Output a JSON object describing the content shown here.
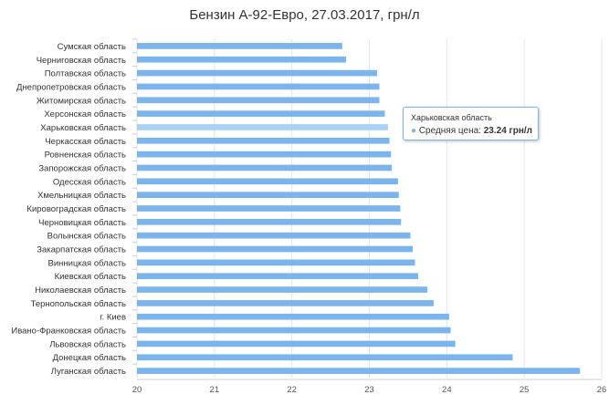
{
  "chart_data": {
    "type": "bar",
    "orientation": "horizontal",
    "title": "Бензин А-92-Евро, 27.03.2017, грн/л",
    "xlabel": "",
    "ylabel": "",
    "xlim": [
      20,
      26
    ],
    "x_ticks": [
      "20",
      "21",
      "22",
      "23",
      "24",
      "25",
      "26"
    ],
    "grid": "vertical",
    "color": "#7cb5ec",
    "highlight_color": "#a9d0f5",
    "categories": [
      "Сумская область",
      "Черниговская область",
      "Полтавская область",
      "Днепропетровская область",
      "Житомирская область",
      "Херсонская область",
      "Харьковская область",
      "Черкасская область",
      "Ровненская область",
      "Запорожская область",
      "Одесская область",
      "Хмельницкая область",
      "Кировоградская область",
      "Черновицкая область",
      "Волынская область",
      "Закарпатская область",
      "Винницкая область",
      "Киевская область",
      "Николаевская область",
      "Тернопольская область",
      "г. Киев",
      "Ивано-Франковская область",
      "Львовская область",
      "Донецкая область",
      "Луганская область"
    ],
    "values": [
      22.65,
      22.7,
      23.1,
      23.13,
      23.13,
      23.2,
      23.24,
      23.26,
      23.28,
      23.29,
      23.37,
      23.38,
      23.4,
      23.41,
      23.53,
      23.56,
      23.59,
      23.63,
      23.75,
      23.83,
      24.03,
      24.05,
      24.11,
      24.85,
      25.72
    ],
    "highlight_index": 6
  },
  "tooltip": {
    "category": "Харьковская область",
    "dot": "●",
    "series_label": "Средняя цена: ",
    "value_text": "23.24 грн/л"
  }
}
